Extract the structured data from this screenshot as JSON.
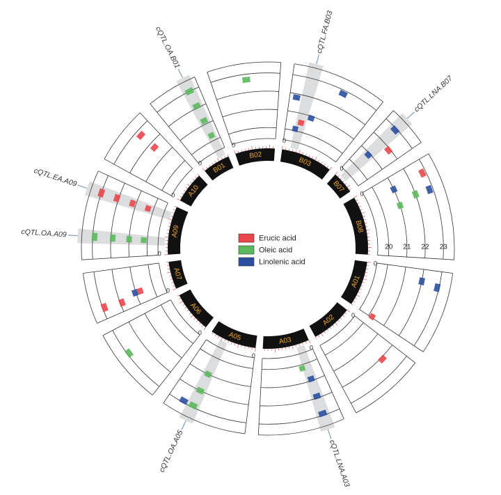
{
  "chart_data": {
    "type": "circos",
    "chromosomes": [
      {
        "name": "B02",
        "length": 23
      },
      {
        "name": "B03",
        "length": 30
      },
      {
        "name": "B07",
        "length": 13
      },
      {
        "name": "B08",
        "length": 34
      },
      {
        "name": "A01",
        "length": 26
      },
      {
        "name": "A02",
        "length": 24
      },
      {
        "name": "A03",
        "length": 27
      },
      {
        "name": "A05",
        "length": 27
      },
      {
        "name": "A06",
        "length": 24
      },
      {
        "name": "A07",
        "length": 16
      },
      {
        "name": "A09",
        "length": 28
      },
      {
        "name": "A10",
        "length": 18
      },
      {
        "name": "B01",
        "length": 16
      }
    ],
    "position_tick": 0,
    "rlim": [
      19.4,
      23.6
    ],
    "rticks": [
      20,
      21,
      22,
      23
    ],
    "series": [
      {
        "name": "Erucic acid",
        "color": "#e8474c",
        "points": [
          {
            "chromosome": 1,
            "position": 6.6,
            "value": 20.5
          },
          {
            "chromosome": 2,
            "position": 8.5,
            "value": 21.9
          },
          {
            "chromosome": 3,
            "position": 4.5,
            "value": 22.8
          },
          {
            "chromosome": 4,
            "position": 25.5,
            "value": 20.2
          },
          {
            "chromosome": 5,
            "position": 6.2,
            "value": 22.1
          },
          {
            "chromosome": 9,
            "position": 3.8,
            "value": 22.9
          },
          {
            "chromosome": 9,
            "position": 3.3,
            "value": 21.9
          },
          {
            "chromosome": 9,
            "position": 5.2,
            "value": 20.75
          },
          {
            "chromosome": 10,
            "position": 21.9,
            "value": 20.3
          },
          {
            "chromosome": 10,
            "position": 21.9,
            "value": 21.2
          },
          {
            "chromosome": 10,
            "position": 21.9,
            "value": 22.1
          },
          {
            "chromosome": 10,
            "position": 21.9,
            "value": 23.0
          },
          {
            "chromosome": 11,
            "position": 13,
            "value": 22.7
          },
          {
            "chromosome": 11,
            "position": 13,
            "value": 21.7
          }
        ]
      },
      {
        "name": "Oleic acid",
        "color": "#5cb85c",
        "points": [
          {
            "chromosome": 0,
            "position": 11.7,
            "value": 22.7
          },
          {
            "chromosome": 3,
            "position": 10.4,
            "value": 22.0
          },
          {
            "chromosome": 3,
            "position": 12.5,
            "value": 21.0
          },
          {
            "chromosome": 6,
            "position": 8.1,
            "value": 20.2
          },
          {
            "chromosome": 7,
            "position": 18.4,
            "value": 21.0
          },
          {
            "chromosome": 7,
            "position": 18.4,
            "value": 22.0
          },
          {
            "chromosome": 7,
            "position": 18.4,
            "value": 22.9
          },
          {
            "chromosome": 8,
            "position": 14.8,
            "value": 22.9
          },
          {
            "chromosome": 10,
            "position": 7.3,
            "value": 20.2
          },
          {
            "chromosome": 10,
            "position": 7.3,
            "value": 21.0
          },
          {
            "chromosome": 10,
            "position": 7.3,
            "value": 21.9
          },
          {
            "chromosome": 10,
            "position": 7.3,
            "value": 22.9
          },
          {
            "chromosome": 12,
            "position": 12.6,
            "value": 20.3
          },
          {
            "chromosome": 12,
            "position": 12.6,
            "value": 21.2
          },
          {
            "chromosome": 12,
            "position": 12.6,
            "value": 22.1
          },
          {
            "chromosome": 12,
            "position": 12.6,
            "value": 23.0
          }
        ]
      },
      {
        "name": "Linolenic acid",
        "color": "#2b4f9e",
        "points": [
          {
            "chromosome": 1,
            "position": 2.6,
            "value": 21.8
          },
          {
            "chromosome": 1,
            "position": 17.8,
            "value": 22.8
          },
          {
            "chromosome": 1,
            "position": 10.2,
            "value": 20.9
          },
          {
            "chromosome": 1,
            "position": 4.7,
            "value": 20.1
          },
          {
            "chromosome": 2,
            "position": 4.7,
            "value": 20.9
          },
          {
            "chromosome": 2,
            "position": 4.7,
            "value": 22.9
          },
          {
            "chromosome": 3,
            "position": 10.5,
            "value": 22.8
          },
          {
            "chromosome": 3,
            "position": 5.4,
            "value": 21.0
          },
          {
            "chromosome": 4,
            "position": 4.4,
            "value": 22.0
          },
          {
            "chromosome": 4,
            "position": 5.4,
            "value": 22.9
          },
          {
            "chromosome": 6,
            "position": 5.7,
            "value": 20.9
          },
          {
            "chromosome": 6,
            "position": 5.7,
            "value": 21.9
          },
          {
            "chromosome": 6,
            "position": 5.7,
            "value": 22.9
          },
          {
            "chromosome": 7,
            "position": 21.9,
            "value": 22.9
          },
          {
            "chromosome": 9,
            "position": 5.2,
            "value": 21.05
          }
        ]
      }
    ],
    "qtls": [
      {
        "label": "cQTL.OA.B01",
        "series": 1,
        "chromosome": 12,
        "position": 12.6
      },
      {
        "label": "cQTL.FA.B03",
        "series": 0,
        "chromosome": 1,
        "position": 6.6
      },
      {
        "label": "cQTL.LNA.B07",
        "series": 2,
        "chromosome": 2,
        "position": 4.7
      },
      {
        "label": "cQTL.EA.A09",
        "series": 0,
        "chromosome": 10,
        "position": 21.9
      },
      {
        "label": "cQTL.OA.A09",
        "series": 1,
        "chromosome": 10,
        "position": 7.3
      },
      {
        "label": "cQTL.OA.A05",
        "series": 1,
        "chromosome": 7,
        "position": 18.4
      },
      {
        "label": "cQTL.LNA.A03",
        "series": 2,
        "chromosome": 6,
        "position": 5.7
      }
    ]
  }
}
